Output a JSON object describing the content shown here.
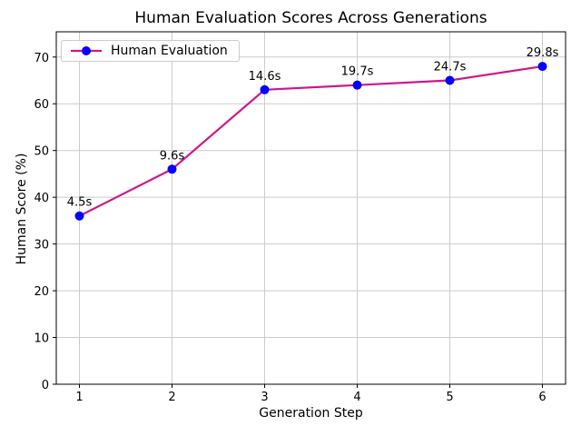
{
  "chart_data": {
    "type": "line",
    "title": "Human Evaluation Scores Across Generations",
    "xlabel": "Generation Step",
    "ylabel": "Human Score (%)",
    "x": [
      1,
      2,
      3,
      4,
      5,
      6
    ],
    "series": [
      {
        "name": "Human Evaluation",
        "values": [
          36,
          46,
          63,
          64,
          65,
          68
        ],
        "annotations": [
          "4.5s",
          "9.6s",
          "14.6s",
          "19.7s",
          "24.7s",
          "29.8s"
        ],
        "line_color": "#CE1789",
        "marker_color": "#0000FF"
      }
    ],
    "xticks": [
      1,
      2,
      3,
      4,
      5,
      6
    ],
    "yticks": [
      0,
      10,
      20,
      30,
      40,
      50,
      60,
      70
    ],
    "xlim": [
      0.75,
      6.25
    ],
    "ylim": [
      0,
      75.4
    ],
    "grid": true,
    "grid_color": "#cccccc",
    "spine_color": "#000000",
    "legend_position": "upper left"
  }
}
